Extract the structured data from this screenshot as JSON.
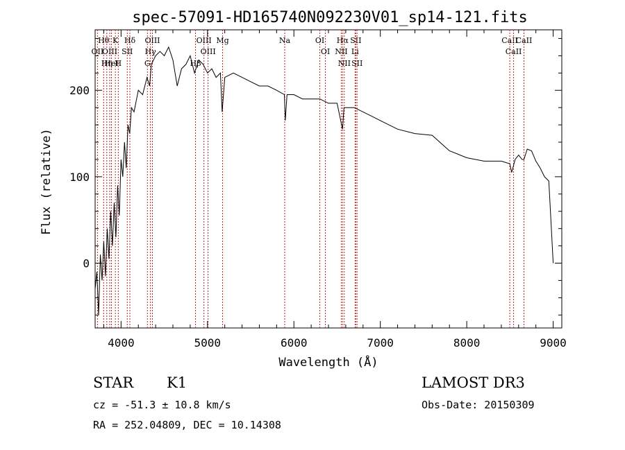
{
  "chart_data": {
    "type": "line",
    "title": "spec-57091-HD165740N092230V01_sp14-121.fits",
    "xlabel": "Wavelength (Å)",
    "ylabel": "Flux (relative)",
    "xlim": [
      3700,
      9100
    ],
    "ylim": [
      -75,
      270
    ],
    "xticks": [
      4000,
      5000,
      6000,
      7000,
      8000,
      9000
    ],
    "yticks": [
      0,
      100,
      200
    ],
    "series": [
      {
        "name": "spectrum",
        "points": [
          [
            3700,
            -30
          ],
          [
            3720,
            -10
          ],
          [
            3740,
            -60
          ],
          [
            3760,
            10
          ],
          [
            3780,
            -20
          ],
          [
            3800,
            25
          ],
          [
            3820,
            -15
          ],
          [
            3840,
            40
          ],
          [
            3860,
            5
          ],
          [
            3880,
            60
          ],
          [
            3900,
            20
          ],
          [
            3920,
            70
          ],
          [
            3940,
            30
          ],
          [
            3960,
            90
          ],
          [
            3980,
            55
          ],
          [
            4000,
            120
          ],
          [
            4020,
            100
          ],
          [
            4040,
            140
          ],
          [
            4060,
            110
          ],
          [
            4080,
            160
          ],
          [
            4100,
            150
          ],
          [
            4120,
            180
          ],
          [
            4150,
            175
          ],
          [
            4200,
            200
          ],
          [
            4250,
            195
          ],
          [
            4300,
            215
          ],
          [
            4330,
            205
          ],
          [
            4350,
            230
          ],
          [
            4400,
            240
          ],
          [
            4450,
            245
          ],
          [
            4500,
            240
          ],
          [
            4550,
            250
          ],
          [
            4600,
            235
          ],
          [
            4650,
            205
          ],
          [
            4700,
            225
          ],
          [
            4750,
            230
          ],
          [
            4800,
            240
          ],
          [
            4850,
            220
          ],
          [
            4900,
            235
          ],
          [
            4950,
            230
          ],
          [
            5000,
            220
          ],
          [
            5050,
            225
          ],
          [
            5100,
            215
          ],
          [
            5150,
            220
          ],
          [
            5170,
            175
          ],
          [
            5200,
            215
          ],
          [
            5300,
            220
          ],
          [
            5400,
            215
          ],
          [
            5500,
            210
          ],
          [
            5600,
            205
          ],
          [
            5700,
            205
          ],
          [
            5800,
            200
          ],
          [
            5890,
            195
          ],
          [
            5900,
            165
          ],
          [
            5920,
            195
          ],
          [
            6000,
            195
          ],
          [
            6100,
            190
          ],
          [
            6200,
            190
          ],
          [
            6300,
            190
          ],
          [
            6400,
            185
          ],
          [
            6500,
            185
          ],
          [
            6562,
            155
          ],
          [
            6580,
            180
          ],
          [
            6700,
            180
          ],
          [
            6800,
            175
          ],
          [
            6900,
            170
          ],
          [
            7000,
            165
          ],
          [
            7200,
            155
          ],
          [
            7400,
            150
          ],
          [
            7600,
            148
          ],
          [
            7800,
            130
          ],
          [
            8000,
            122
          ],
          [
            8200,
            118
          ],
          [
            8400,
            118
          ],
          [
            8498,
            115
          ],
          [
            8520,
            105
          ],
          [
            8560,
            120
          ],
          [
            8600,
            125
          ],
          [
            8640,
            120
          ],
          [
            8662,
            120
          ],
          [
            8700,
            132
          ],
          [
            8750,
            130
          ],
          [
            8800,
            118
          ],
          [
            8850,
            110
          ],
          [
            8900,
            100
          ],
          [
            8950,
            95
          ],
          [
            9000,
            0
          ]
        ]
      }
    ],
    "lines": [
      {
        "name": "Hθ",
        "wavelength": 3798
      },
      {
        "name": "OII",
        "wavelength": 3727
      },
      {
        "name": "OIII",
        "wavelength": 3869
      },
      {
        "name": "K",
        "wavelength": 3934
      },
      {
        "name": "HeI",
        "wavelength": 3889
      },
      {
        "name": "Hη",
        "wavelength": 3835
      },
      {
        "name": "H",
        "wavelength": 3968
      },
      {
        "name": "Hδ",
        "wavelength": 4102
      },
      {
        "name": "SII",
        "wavelength": 4072
      },
      {
        "name": "OIII",
        "wavelength": 4363
      },
      {
        "name": "Hγ",
        "wavelength": 4340
      },
      {
        "name": "G",
        "wavelength": 4305
      },
      {
        "name": "OIII",
        "wavelength": 4959
      },
      {
        "name": "OIII",
        "wavelength": 5007
      },
      {
        "name": "Hβ",
        "wavelength": 4861
      },
      {
        "name": "Mg",
        "wavelength": 5175
      },
      {
        "name": "Na",
        "wavelength": 5894
      },
      {
        "name": "OI",
        "wavelength": 6300
      },
      {
        "name": "OI",
        "wavelength": 6364
      },
      {
        "name": "Hα",
        "wavelength": 6563
      },
      {
        "name": "NII",
        "wavelength": 6548
      },
      {
        "name": "NII",
        "wavelength": 6583
      },
      {
        "name": "SII",
        "wavelength": 6716
      },
      {
        "name": "Li",
        "wavelength": 6708
      },
      {
        "name": "SII",
        "wavelength": 6731
      },
      {
        "name": "CaII",
        "wavelength": 8498
      },
      {
        "name": "CaII",
        "wavelength": 8542
      },
      {
        "name": "CaII",
        "wavelength": 8662
      }
    ]
  },
  "info": {
    "class": "STAR",
    "subclass": "K1",
    "survey": "LAMOST DR3",
    "cz": "cz = -51.3 ± 10.8 km/s",
    "obs_date": "Obs-Date: 20150309",
    "coords": "RA = 252.04809, DEC =  10.14308"
  },
  "colors": {
    "line_markers": "#c02020",
    "axis": "#000000",
    "spectrum": "#000000"
  }
}
